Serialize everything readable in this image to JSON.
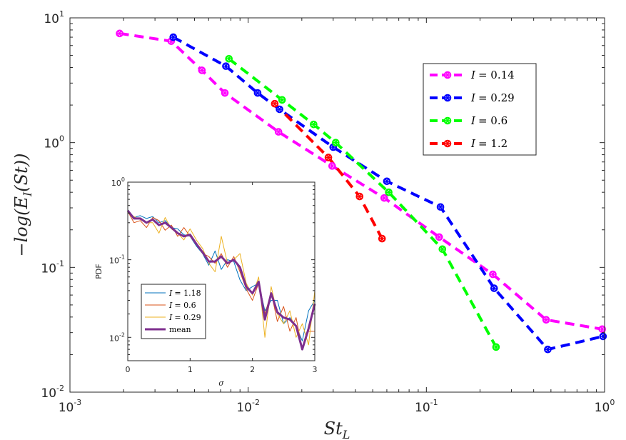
{
  "chart_data": [
    {
      "type": "line",
      "scale": "loglog",
      "xlabel": "St_L",
      "ylabel": "-log(E_I(St))",
      "xlim": [
        0.001,
        1
      ],
      "ylim": [
        0.01,
        10
      ],
      "x_ticks": [
        {
          "base": "10",
          "exp": "-3"
        },
        {
          "base": "10",
          "exp": "-2"
        },
        {
          "base": "10",
          "exp": "-1"
        },
        {
          "base": "10",
          "exp": "0"
        }
      ],
      "y_ticks": [
        {
          "base": "10",
          "exp": "-2"
        },
        {
          "base": "10",
          "exp": "-1"
        },
        {
          "base": "10",
          "exp": "0"
        },
        {
          "base": "10",
          "exp": "1"
        }
      ],
      "legend_position": "top-right",
      "series": [
        {
          "name": "I = 0.14",
          "label_lhs": "I",
          "label_rhs": "= 0.14",
          "color": "#ff00ff",
          "x": [
            0.0019,
            0.0037,
            0.0055,
            0.0074,
            0.0148,
            0.0296,
            0.058,
            0.118,
            0.236,
            0.47,
            0.97
          ],
          "y": [
            7.5,
            6.5,
            3.8,
            2.5,
            1.22,
            0.65,
            0.36,
            0.175,
            0.088,
            0.038,
            0.032
          ]
        },
        {
          "name": "I = 0.29",
          "label_lhs": "I",
          "label_rhs": "= 0.29",
          "color": "#0000ff",
          "x": [
            0.0038,
            0.0075,
            0.0113,
            0.015,
            0.03,
            0.06,
            0.12,
            0.24,
            0.48,
            0.98
          ],
          "y": [
            7.0,
            4.1,
            2.5,
            1.85,
            0.92,
            0.49,
            0.305,
            0.068,
            0.022,
            0.028
          ]
        },
        {
          "name": "I = 0.6",
          "label_lhs": "I",
          "label_rhs": "= 0.6",
          "color": "#00ff00",
          "x": [
            0.0078,
            0.0155,
            0.0233,
            0.031,
            0.0615,
            0.123,
            0.246
          ],
          "y": [
            4.7,
            2.2,
            1.4,
            1.0,
            0.4,
            0.14,
            0.023
          ]
        },
        {
          "name": "I = 1.2",
          "label_lhs": "I",
          "label_rhs": "= 1.2",
          "color": "#ff0000",
          "x": [
            0.0141,
            0.0282,
            0.0422,
            0.0564
          ],
          "y": [
            2.05,
            0.76,
            0.37,
            0.17
          ]
        }
      ]
    },
    {
      "type": "line",
      "scale": "semilogy",
      "xlabel": "σ",
      "ylabel": "PDF",
      "xlim": [
        0,
        3
      ],
      "ylim": [
        0.005,
        1
      ],
      "x_ticks": [
        "0",
        "1",
        "2",
        "3"
      ],
      "y_ticks": [
        {
          "base": "10",
          "exp": "0",
          "value": 1
        },
        {
          "base": "10",
          "exp": "-1",
          "value": 0.1
        },
        {
          "base": "10",
          "exp": "-2",
          "value": 0.01
        }
      ],
      "legend_position": "bottom-left",
      "series": [
        {
          "name": "I = 1.18",
          "label_lhs": "I",
          "label_rhs": "= 1.18",
          "color": "#0072bd",
          "width": 1,
          "x": [
            0,
            0.1,
            0.2,
            0.3,
            0.4,
            0.5,
            0.6,
            0.7,
            0.8,
            0.9,
            1.0,
            1.1,
            1.2,
            1.3,
            1.4,
            1.5,
            1.6,
            1.7,
            1.8,
            1.9,
            2.0,
            2.1,
            2.2,
            2.3,
            2.4,
            2.5,
            2.6,
            2.7,
            2.8,
            2.9,
            3.0
          ],
          "y": [
            0.44,
            0.35,
            0.37,
            0.34,
            0.36,
            0.3,
            0.32,
            0.26,
            0.25,
            0.21,
            0.2,
            0.15,
            0.12,
            0.085,
            0.13,
            0.075,
            0.1,
            0.095,
            0.055,
            0.04,
            0.045,
            0.05,
            0.022,
            0.03,
            0.03,
            0.015,
            0.018,
            0.014,
            0.009,
            0.022,
            0.03
          ]
        },
        {
          "name": "I = 0.6",
          "label_lhs": "I",
          "label_rhs": "= 0.6",
          "color": "#d95319",
          "width": 1,
          "x": [
            0,
            0.1,
            0.2,
            0.3,
            0.4,
            0.5,
            0.6,
            0.7,
            0.8,
            0.9,
            1.0,
            1.1,
            1.2,
            1.3,
            1.4,
            1.5,
            1.6,
            1.7,
            1.8,
            1.9,
            2.0,
            2.1,
            2.2,
            2.3,
            2.4,
            2.5,
            2.6,
            2.7,
            2.8,
            2.9,
            3.0
          ],
          "y": [
            0.42,
            0.3,
            0.32,
            0.26,
            0.35,
            0.32,
            0.24,
            0.28,
            0.2,
            0.26,
            0.2,
            0.16,
            0.12,
            0.11,
            0.09,
            0.12,
            0.08,
            0.11,
            0.07,
            0.042,
            0.03,
            0.05,
            0.02,
            0.038,
            0.016,
            0.025,
            0.012,
            0.018,
            0.007,
            0.012,
            0.012
          ]
        },
        {
          "name": "I = 0.29",
          "label_lhs": "I",
          "label_rhs": "= 0.29",
          "color": "#edb120",
          "width": 1,
          "x": [
            0,
            0.1,
            0.2,
            0.3,
            0.4,
            0.5,
            0.6,
            0.7,
            0.8,
            0.9,
            1.0,
            1.1,
            1.2,
            1.3,
            1.4,
            1.5,
            1.6,
            1.7,
            1.8,
            1.9,
            2.0,
            2.1,
            2.2,
            2.3,
            2.4,
            2.5,
            2.6,
            2.7,
            2.8,
            2.9,
            3.0
          ],
          "y": [
            0.4,
            0.36,
            0.33,
            0.3,
            0.3,
            0.22,
            0.35,
            0.25,
            0.22,
            0.18,
            0.25,
            0.18,
            0.14,
            0.09,
            0.07,
            0.2,
            0.09,
            0.1,
            0.12,
            0.05,
            0.035,
            0.06,
            0.01,
            0.045,
            0.02,
            0.015,
            0.022,
            0.01,
            0.015,
            0.008,
            0.04
          ]
        },
        {
          "name": "mean",
          "label_lhs": "",
          "label_rhs": "mean",
          "color": "#7e2f8e",
          "width": 3,
          "x": [
            0,
            0.1,
            0.2,
            0.3,
            0.4,
            0.5,
            0.6,
            0.7,
            0.8,
            0.9,
            1.0,
            1.1,
            1.2,
            1.3,
            1.4,
            1.5,
            1.6,
            1.7,
            1.8,
            1.9,
            2.0,
            2.1,
            2.2,
            2.3,
            2.4,
            2.5,
            2.6,
            2.7,
            2.8,
            2.9,
            3.0
          ],
          "y": [
            0.43,
            0.34,
            0.34,
            0.3,
            0.33,
            0.28,
            0.3,
            0.26,
            0.22,
            0.2,
            0.21,
            0.16,
            0.125,
            0.095,
            0.095,
            0.11,
            0.09,
            0.1,
            0.08,
            0.045,
            0.037,
            0.052,
            0.017,
            0.037,
            0.021,
            0.018,
            0.017,
            0.014,
            0.007,
            0.013,
            0.027
          ]
        }
      ]
    }
  ]
}
